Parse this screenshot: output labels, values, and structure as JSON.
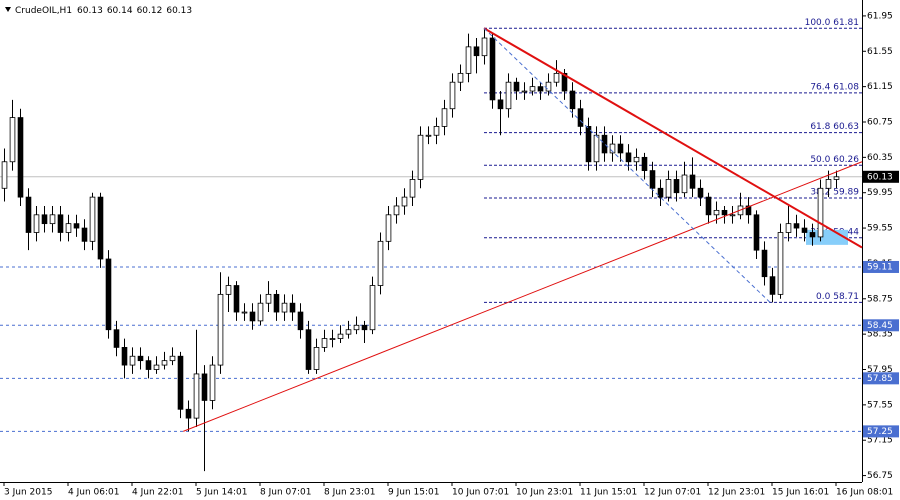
{
  "chart_data": {
    "type": "candlestick",
    "title": "CrudeOIL,H1",
    "header_values": [
      60.13,
      60.14,
      60.12,
      60.13
    ],
    "up_color": "#ffffff",
    "down_color": "#000000",
    "wick_color": "#000000",
    "ylim": [
      56.7,
      62.13
    ],
    "yticks": [
      61.95,
      61.55,
      61.15,
      60.75,
      60.35,
      59.95,
      59.55,
      59.15,
      58.75,
      58.35,
      57.95,
      57.55,
      57.15,
      56.75
    ],
    "xlim": [
      -0.5,
      107.25
    ],
    "xticks": [
      {
        "value": 0,
        "label": "3 Jun 2015"
      },
      {
        "value": 8,
        "label": "4 Jun 06:01"
      },
      {
        "value": 16,
        "label": "4 Jun 22:01"
      },
      {
        "value": 24,
        "label": "5 Jun 14:01"
      },
      {
        "value": 32,
        "label": "8 Jun 07:01"
      },
      {
        "value": 40,
        "label": "8 Jun 23:01"
      },
      {
        "value": 48,
        "label": "9 Jun 15:01"
      },
      {
        "value": 56,
        "label": "10 Jun 07:01"
      },
      {
        "value": 64,
        "label": "10 Jun 23:01"
      },
      {
        "value": 72,
        "label": "11 Jun 15:01"
      },
      {
        "value": 80,
        "label": "12 Jun 07:01"
      },
      {
        "value": 88,
        "label": "12 Jun 23:01"
      },
      {
        "value": 96,
        "label": "15 Jun 16:01"
      },
      {
        "value": 104,
        "label": "16 Jun 08:01"
      }
    ],
    "candles": [
      [
        60.0,
        60.45,
        59.85,
        60.3
      ],
      [
        60.3,
        61.0,
        60.2,
        60.8
      ],
      [
        60.8,
        60.9,
        59.8,
        59.9
      ],
      [
        59.9,
        60.0,
        59.3,
        59.5
      ],
      [
        59.5,
        59.8,
        59.4,
        59.7
      ],
      [
        59.7,
        59.8,
        59.5,
        59.6
      ],
      [
        59.6,
        59.8,
        59.5,
        59.7
      ],
      [
        59.7,
        59.8,
        59.4,
        59.5
      ],
      [
        59.5,
        59.7,
        59.4,
        59.6
      ],
      [
        59.6,
        59.7,
        59.45,
        59.55
      ],
      [
        59.55,
        59.65,
        59.3,
        59.4
      ],
      [
        59.4,
        59.95,
        59.3,
        59.9
      ],
      [
        59.9,
        59.95,
        59.1,
        59.2
      ],
      [
        59.2,
        59.3,
        58.3,
        58.4
      ],
      [
        58.4,
        58.5,
        58.1,
        58.2
      ],
      [
        58.2,
        58.3,
        57.85,
        58.0
      ],
      [
        58.0,
        58.2,
        57.9,
        58.1
      ],
      [
        58.1,
        58.2,
        57.95,
        58.05
      ],
      [
        58.05,
        58.1,
        57.85,
        57.95
      ],
      [
        57.95,
        58.1,
        57.9,
        58.0
      ],
      [
        58.0,
        58.15,
        57.95,
        58.05
      ],
      [
        58.05,
        58.2,
        58.0,
        58.1
      ],
      [
        58.1,
        58.15,
        57.4,
        57.5
      ],
      [
        57.5,
        57.6,
        57.25,
        57.4
      ],
      [
        57.4,
        58.4,
        57.3,
        57.9
      ],
      [
        57.9,
        58.0,
        56.8,
        57.6
      ],
      [
        57.6,
        58.1,
        57.5,
        58.0
      ],
      [
        58.0,
        59.05,
        57.9,
        58.8
      ],
      [
        58.8,
        59.0,
        58.6,
        58.9
      ],
      [
        58.9,
        58.95,
        58.5,
        58.6
      ],
      [
        58.6,
        58.7,
        58.5,
        58.6
      ],
      [
        58.6,
        58.7,
        58.4,
        58.5
      ],
      [
        58.5,
        58.8,
        58.45,
        58.7
      ],
      [
        58.7,
        58.95,
        58.6,
        58.8
      ],
      [
        58.8,
        58.85,
        58.5,
        58.6
      ],
      [
        58.6,
        58.8,
        58.5,
        58.7
      ],
      [
        58.7,
        58.8,
        58.5,
        58.6
      ],
      [
        58.6,
        58.7,
        58.3,
        58.4
      ],
      [
        58.4,
        58.5,
        57.9,
        57.95
      ],
      [
        57.95,
        58.3,
        57.9,
        58.2
      ],
      [
        58.2,
        58.4,
        58.15,
        58.3
      ],
      [
        58.3,
        58.4,
        58.2,
        58.3
      ],
      [
        58.3,
        58.45,
        58.25,
        58.35
      ],
      [
        58.35,
        58.5,
        58.3,
        58.4
      ],
      [
        58.4,
        58.55,
        58.35,
        58.45
      ],
      [
        58.45,
        58.5,
        58.25,
        58.4
      ],
      [
        58.4,
        59.0,
        58.35,
        58.9
      ],
      [
        58.9,
        59.5,
        58.8,
        59.4
      ],
      [
        59.4,
        59.8,
        59.3,
        59.7
      ],
      [
        59.7,
        59.9,
        59.6,
        59.8
      ],
      [
        59.8,
        60.0,
        59.7,
        59.9
      ],
      [
        59.9,
        60.2,
        59.8,
        60.1
      ],
      [
        60.1,
        60.7,
        60.0,
        60.6
      ],
      [
        60.6,
        60.7,
        60.5,
        60.6
      ],
      [
        60.6,
        60.8,
        60.5,
        60.7
      ],
      [
        60.7,
        61.0,
        60.6,
        60.9
      ],
      [
        60.9,
        61.3,
        60.8,
        61.2
      ],
      [
        61.2,
        61.4,
        61.1,
        61.3
      ],
      [
        61.3,
        61.75,
        61.2,
        61.6
      ],
      [
        61.6,
        61.7,
        61.3,
        61.5
      ],
      [
        61.5,
        61.81,
        61.4,
        61.7
      ],
      [
        61.7,
        61.75,
        60.9,
        61.0
      ],
      [
        61.0,
        61.1,
        60.6,
        60.9
      ],
      [
        60.9,
        61.3,
        60.8,
        61.2
      ],
      [
        61.2,
        61.25,
        61.0,
        61.1
      ],
      [
        61.1,
        61.2,
        61.0,
        61.1
      ],
      [
        61.1,
        61.25,
        61.05,
        61.15
      ],
      [
        61.15,
        61.2,
        61.0,
        61.1
      ],
      [
        61.1,
        61.3,
        61.05,
        61.2
      ],
      [
        61.2,
        61.45,
        61.15,
        61.3
      ],
      [
        61.3,
        61.35,
        61.0,
        61.1
      ],
      [
        61.1,
        61.2,
        60.8,
        60.9
      ],
      [
        60.9,
        61.0,
        60.6,
        60.7
      ],
      [
        60.7,
        60.8,
        60.2,
        60.3
      ],
      [
        60.3,
        60.7,
        60.2,
        60.6
      ],
      [
        60.6,
        60.7,
        60.3,
        60.4
      ],
      [
        60.4,
        60.6,
        60.3,
        60.5
      ],
      [
        60.5,
        60.6,
        60.3,
        60.4
      ],
      [
        60.4,
        60.5,
        60.2,
        60.3
      ],
      [
        60.3,
        60.45,
        60.2,
        60.35
      ],
      [
        60.35,
        60.4,
        60.1,
        60.2
      ],
      [
        60.2,
        60.3,
        59.9,
        60.0
      ],
      [
        60.0,
        60.1,
        59.8,
        59.9
      ],
      [
        59.9,
        60.2,
        59.85,
        60.1
      ],
      [
        60.1,
        60.2,
        59.85,
        59.95
      ],
      [
        59.95,
        60.3,
        59.9,
        60.15
      ],
      [
        60.15,
        60.35,
        59.9,
        60.0
      ],
      [
        60.0,
        60.1,
        59.8,
        59.9
      ],
      [
        59.9,
        59.95,
        59.6,
        59.7
      ],
      [
        59.7,
        59.85,
        59.6,
        59.75
      ],
      [
        59.75,
        59.8,
        59.6,
        59.7
      ],
      [
        59.7,
        59.8,
        59.6,
        59.7
      ],
      [
        59.7,
        59.95,
        59.65,
        59.8
      ],
      [
        59.8,
        59.9,
        59.6,
        59.7
      ],
      [
        59.7,
        59.75,
        59.2,
        59.3
      ],
      [
        59.3,
        59.4,
        58.9,
        59.0
      ],
      [
        59.0,
        59.1,
        58.71,
        58.8
      ],
      [
        58.8,
        59.6,
        58.75,
        59.5
      ],
      [
        59.5,
        59.8,
        59.4,
        59.6
      ],
      [
        59.6,
        59.7,
        59.45,
        59.55
      ],
      [
        59.55,
        59.65,
        59.4,
        59.5
      ],
      [
        59.5,
        59.6,
        59.35,
        59.45
      ],
      [
        59.45,
        60.1,
        59.4,
        60.0
      ],
      [
        60.0,
        60.2,
        59.9,
        60.1
      ],
      [
        60.1,
        60.2,
        60.0,
        60.13
      ]
    ],
    "levels": [
      59.11,
      58.45,
      57.85,
      57.25
    ],
    "level_color": "#4a6fd0",
    "last_price": 60.13,
    "fibonacci": {
      "start": 60,
      "color": "#1a1a90",
      "levels": [
        {
          "value": 61.81,
          "label": "100.0 61.81"
        },
        {
          "value": 61.08,
          "label": "76.4 61.08"
        },
        {
          "value": 60.63,
          "label": "61.8 60.63"
        },
        {
          "value": 60.26,
          "label": "50.0 60.26"
        },
        {
          "value": 59.89,
          "label": "38.2 59.89"
        },
        {
          "value": 59.44,
          "label": "23.6 59.44"
        },
        {
          "value": 58.71,
          "label": "0.0 58.71"
        }
      ]
    },
    "trendlines": [
      {
        "color": "#e01010",
        "width": 2,
        "dashed": false,
        "from": [
          60,
          61.81
        ],
        "to": [
          107.25,
          59.33
        ]
      },
      {
        "color": "#e01010",
        "width": 1,
        "dashed": false,
        "from": [
          22.4,
          57.25
        ],
        "to": [
          107.25,
          60.3
        ]
      },
      {
        "color": "#4a6fd0",
        "width": 1,
        "dashed": true,
        "from": [
          60,
          61.81
        ],
        "to": [
          95.75,
          58.71
        ]
      }
    ],
    "zone": {
      "x": [
        100.25,
        105.5
      ],
      "y": [
        59.36,
        59.53
      ],
      "color": "#87cefa"
    }
  }
}
